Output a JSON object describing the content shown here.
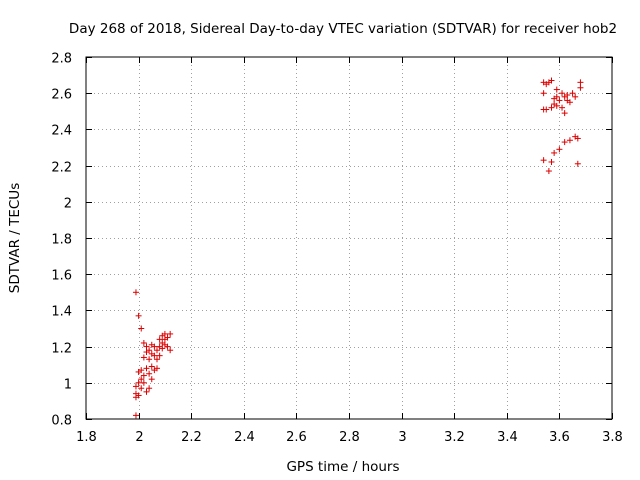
{
  "chart_data": {
    "type": "scatter",
    "title": "Day 268 of 2018, Sidereal Day-to-day VTEC variation (SDTVAR) for receiver hob2",
    "xlabel": "GPS time / hours",
    "ylabel": "SDTVAR / TECUs",
    "xlim": [
      1.8,
      3.8
    ],
    "ylim": [
      0.8,
      2.8
    ],
    "xticks": [
      1.8,
      2,
      2.2,
      2.4,
      2.6,
      2.8,
      3,
      3.2,
      3.4,
      3.6,
      3.8
    ],
    "xtick_labels": [
      "1.8",
      "2",
      "2.2",
      "2.4",
      "2.6",
      "2.8",
      "3",
      "3.2",
      "3.4",
      "3.6",
      "3.8"
    ],
    "yticks": [
      0.8,
      1,
      1.2,
      1.4,
      1.6,
      1.8,
      2,
      2.2,
      2.4,
      2.6,
      2.8
    ],
    "ytick_labels": [
      "0.8",
      "1",
      "1.2",
      "1.4",
      "1.6",
      "1.8",
      "2",
      "2.2",
      "2.4",
      "2.6",
      "2.8"
    ],
    "grid": true,
    "marker": "+",
    "color": "#dd0000",
    "series": [
      {
        "name": "SDTVAR",
        "points": [
          [
            1.99,
            1.5
          ],
          [
            1.99,
            0.82
          ],
          [
            1.99,
            0.92
          ],
          [
            1.99,
            0.94
          ],
          [
            1.99,
            0.98
          ],
          [
            2.0,
            1.37
          ],
          [
            2.0,
            1.0
          ],
          [
            2.0,
            0.93
          ],
          [
            2.0,
            1.06
          ],
          [
            2.01,
            1.3
          ],
          [
            2.01,
            1.02
          ],
          [
            2.01,
            0.97
          ],
          [
            2.01,
            1.07
          ],
          [
            2.02,
            1.22
          ],
          [
            2.02,
            1.04
          ],
          [
            2.02,
            1.0
          ],
          [
            2.02,
            1.14
          ],
          [
            2.03,
            1.2
          ],
          [
            2.03,
            0.95
          ],
          [
            2.03,
            1.08
          ],
          [
            2.03,
            1.17
          ],
          [
            2.04,
            1.18
          ],
          [
            2.04,
            1.05
          ],
          [
            2.04,
            0.97
          ],
          [
            2.04,
            1.13
          ],
          [
            2.05,
            1.21
          ],
          [
            2.05,
            1.09
          ],
          [
            2.05,
            1.02
          ],
          [
            2.05,
            1.16
          ],
          [
            2.06,
            1.15
          ],
          [
            2.06,
            1.07
          ],
          [
            2.06,
            1.2
          ],
          [
            2.07,
            1.13
          ],
          [
            2.07,
            1.18
          ],
          [
            2.07,
            1.08
          ],
          [
            2.08,
            1.2
          ],
          [
            2.08,
            1.15
          ],
          [
            2.08,
            1.24
          ],
          [
            2.09,
            1.19
          ],
          [
            2.09,
            1.26
          ],
          [
            2.09,
            1.22
          ],
          [
            2.1,
            1.21
          ],
          [
            2.1,
            1.27
          ],
          [
            2.1,
            1.24
          ],
          [
            2.11,
            1.25
          ],
          [
            2.11,
            1.2
          ],
          [
            2.12,
            1.27
          ],
          [
            2.12,
            1.18
          ],
          [
            3.54,
            2.66
          ],
          [
            3.54,
            2.6
          ],
          [
            3.54,
            2.51
          ],
          [
            3.54,
            2.23
          ],
          [
            3.55,
            2.65
          ],
          [
            3.55,
            2.51
          ],
          [
            3.56,
            2.66
          ],
          [
            3.56,
            2.17
          ],
          [
            3.57,
            2.67
          ],
          [
            3.57,
            2.52
          ],
          [
            3.57,
            2.22
          ],
          [
            3.58,
            2.57
          ],
          [
            3.58,
            2.54
          ],
          [
            3.58,
            2.27
          ],
          [
            3.59,
            2.62
          ],
          [
            3.59,
            2.58
          ],
          [
            3.59,
            2.53
          ],
          [
            3.6,
            2.56
          ],
          [
            3.6,
            2.29
          ],
          [
            3.61,
            2.6
          ],
          [
            3.61,
            2.52
          ],
          [
            3.62,
            2.58
          ],
          [
            3.62,
            2.49
          ],
          [
            3.62,
            2.33
          ],
          [
            3.63,
            2.59
          ],
          [
            3.63,
            2.56
          ],
          [
            3.64,
            2.55
          ],
          [
            3.64,
            2.34
          ],
          [
            3.65,
            2.6
          ],
          [
            3.66,
            2.58
          ],
          [
            3.66,
            2.36
          ],
          [
            3.67,
            2.35
          ],
          [
            3.67,
            2.21
          ],
          [
            3.68,
            2.66
          ],
          [
            3.68,
            2.63
          ]
        ]
      }
    ]
  }
}
